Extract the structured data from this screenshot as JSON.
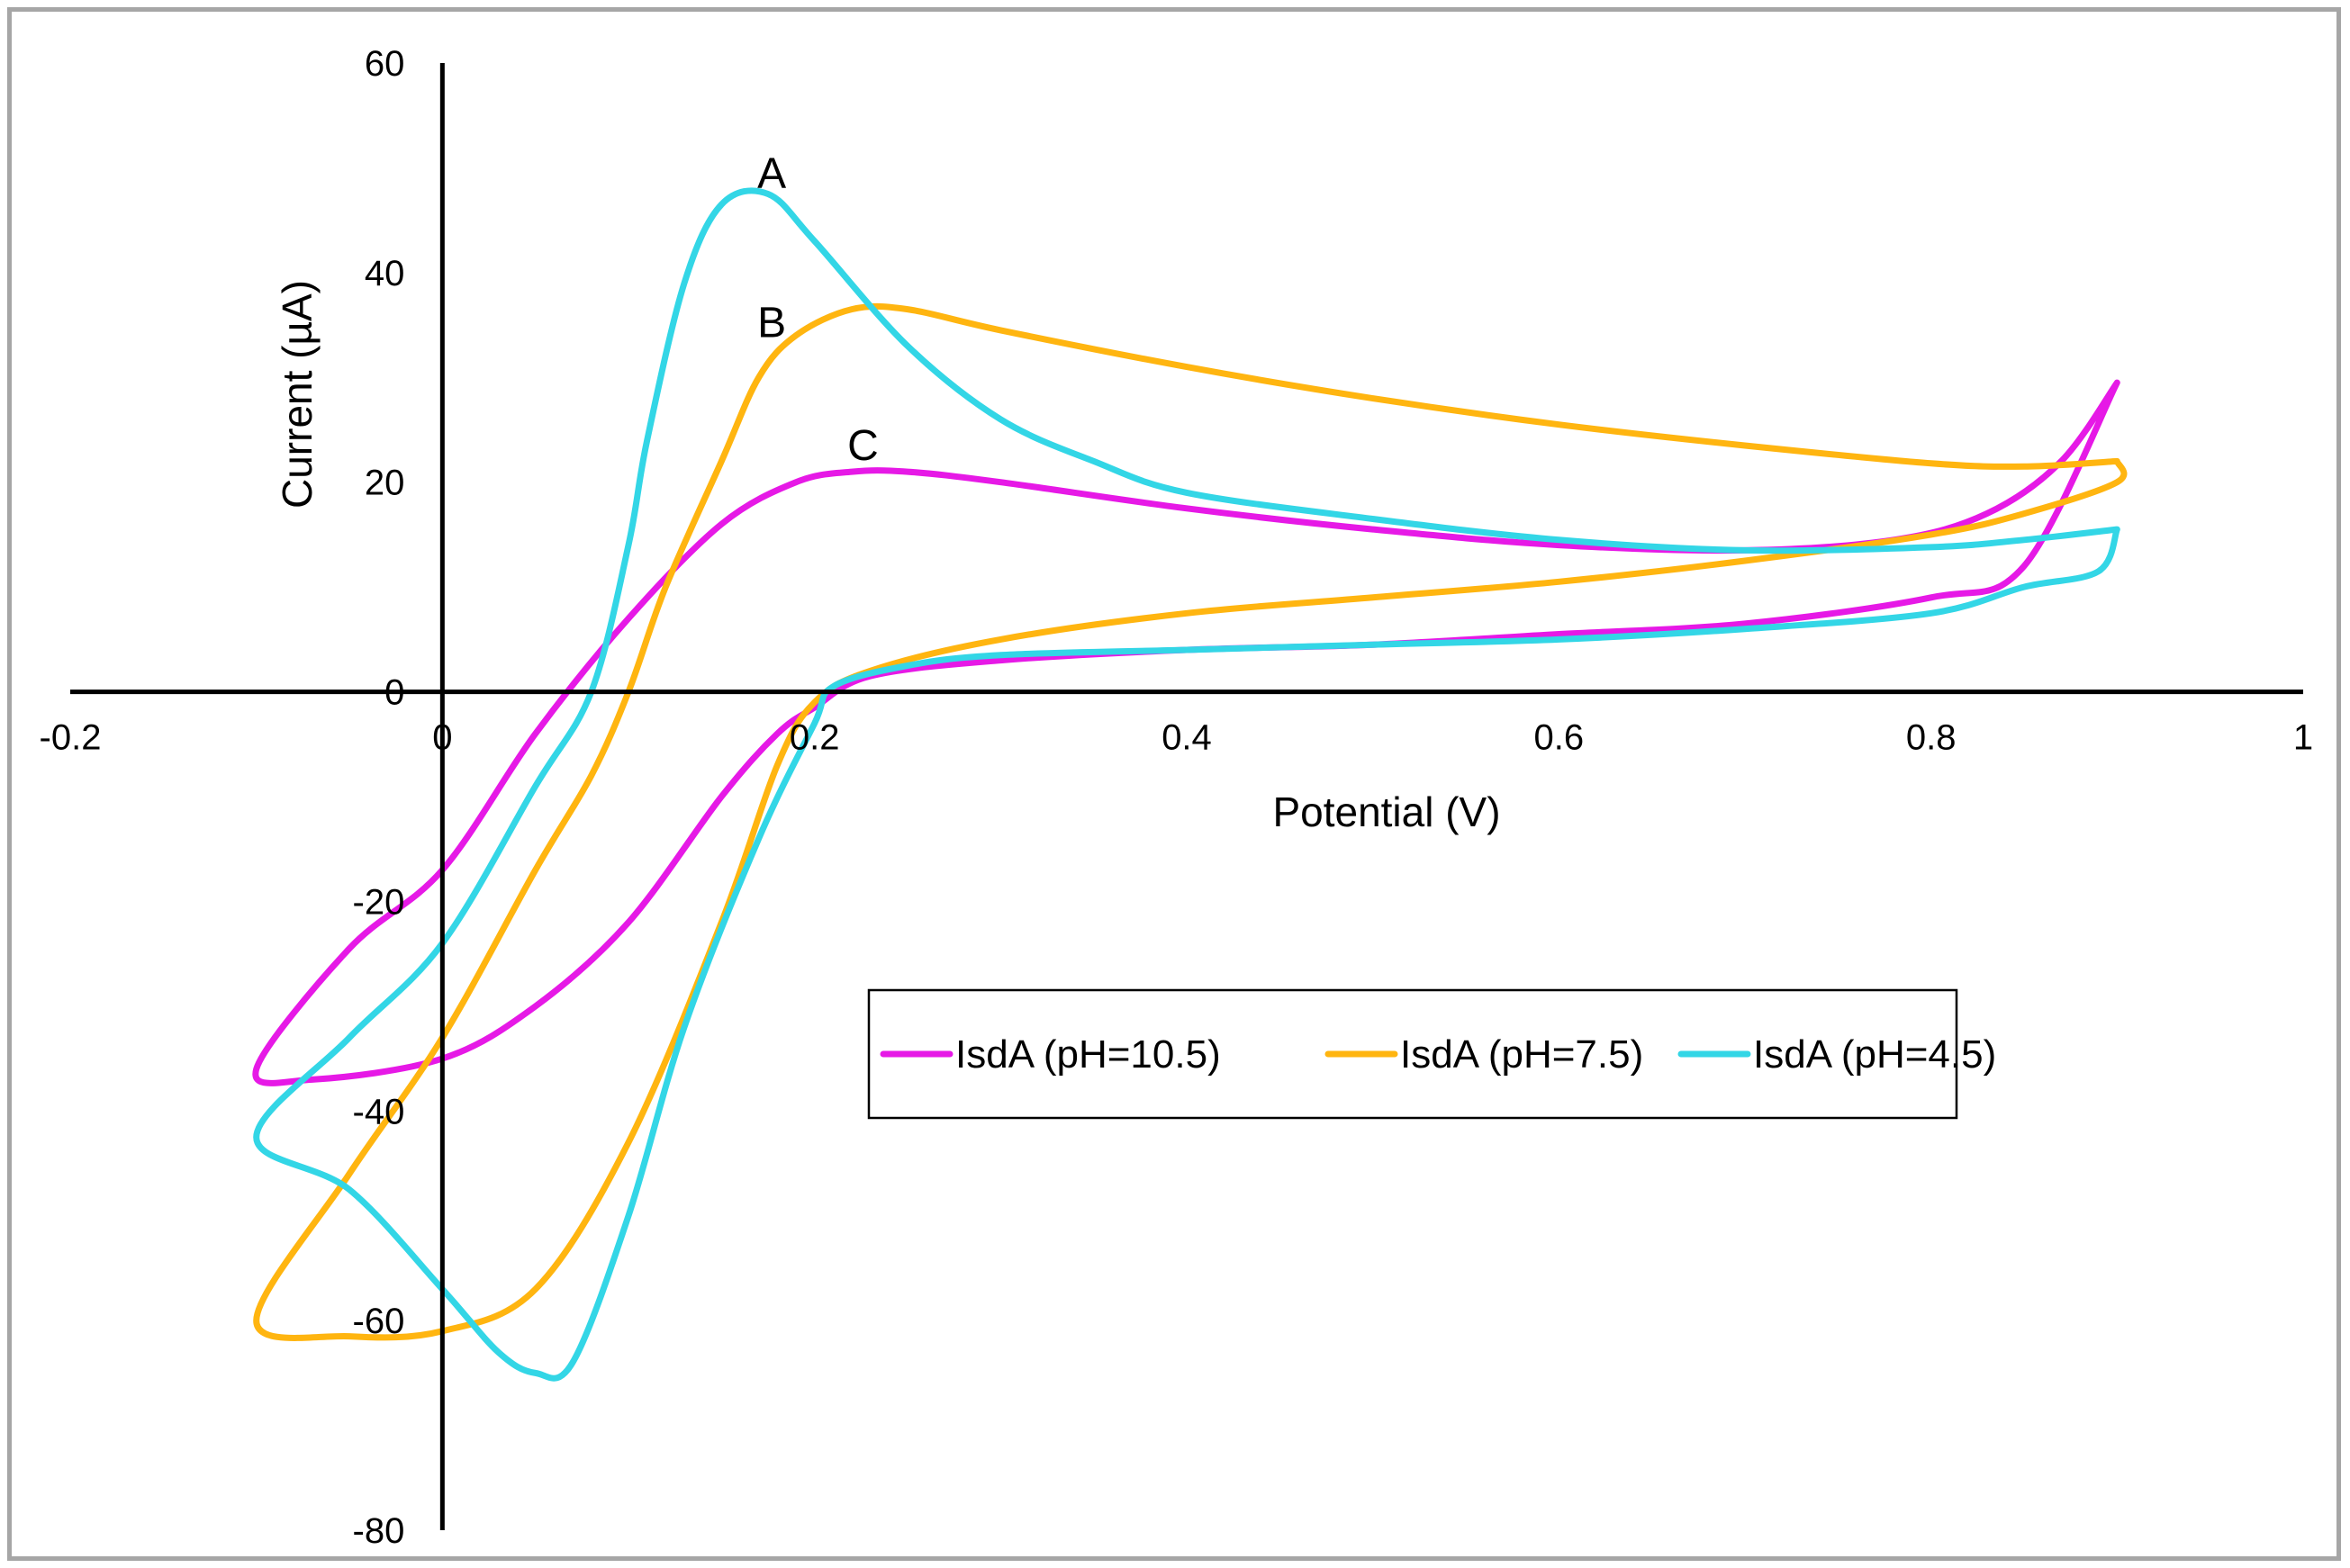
{
  "chart_data": {
    "type": "line",
    "title": "",
    "xlabel": "Potential (V)",
    "ylabel": "Current (µA)",
    "xlim": [
      -0.2,
      1
    ],
    "ylim": [
      -80,
      60
    ],
    "xticks": [
      -0.2,
      0,
      0.2,
      0.4,
      0.6,
      0.8,
      1
    ],
    "xtick_labels": [
      "-0.2",
      "0",
      "0.2",
      "0.4",
      "0.6",
      "0.8",
      "1"
    ],
    "yticks": [
      60,
      40,
      20,
      0,
      -20,
      -40,
      -60,
      -80
    ],
    "ytick_labels": [
      "60",
      "40",
      "20",
      "0",
      "-20",
      "-40",
      "-60",
      "-80"
    ],
    "grid": false,
    "legend_position": "center-right",
    "annotations": [
      {
        "text": "A",
        "x": 0.177,
        "y": 49.5
      },
      {
        "text": "B",
        "x": 0.177,
        "y": 35.2
      },
      {
        "text": "C",
        "x": 0.226,
        "y": 23.5
      }
    ],
    "series": [
      {
        "name": "IsdA (pH=10.5)",
        "color": "#e619e6",
        "points": [
          [
            0.9,
            29.5
          ],
          [
            0.87,
            22.0
          ],
          [
            0.83,
            17.0
          ],
          [
            0.78,
            14.5
          ],
          [
            0.7,
            13.5
          ],
          [
            0.6,
            14.0
          ],
          [
            0.5,
            15.5
          ],
          [
            0.4,
            17.5
          ],
          [
            0.3,
            20.0
          ],
          [
            0.25,
            21.0
          ],
          [
            0.22,
            21.0
          ],
          [
            0.19,
            20.0
          ],
          [
            0.15,
            16.0
          ],
          [
            0.1,
            7.0
          ],
          [
            0.05,
            -4.0
          ],
          [
            0.0,
            -17.0
          ],
          [
            -0.05,
            -24.5
          ],
          [
            -0.1,
            -36.0
          ],
          [
            -0.07,
            -37.0
          ],
          [
            0.0,
            -35.0
          ],
          [
            0.05,
            -30.0
          ],
          [
            0.1,
            -22.0
          ],
          [
            0.15,
            -10.0
          ],
          [
            0.18,
            -4.0
          ],
          [
            0.2,
            -1.5
          ],
          [
            0.23,
            1.5
          ],
          [
            0.3,
            3.0
          ],
          [
            0.4,
            4.0
          ],
          [
            0.5,
            4.5
          ],
          [
            0.6,
            5.5
          ],
          [
            0.7,
            6.5
          ],
          [
            0.8,
            9.0
          ],
          [
            0.85,
            12.0
          ],
          [
            0.9,
            29.5
          ]
        ]
      },
      {
        "name": "IsdA (pH=7.5)",
        "color": "#ffb510",
        "points": [
          [
            0.9,
            22.0
          ],
          [
            0.85,
            21.5
          ],
          [
            0.8,
            21.8
          ],
          [
            0.7,
            23.5
          ],
          [
            0.6,
            25.5
          ],
          [
            0.5,
            28.0
          ],
          [
            0.4,
            31.0
          ],
          [
            0.3,
            34.5
          ],
          [
            0.25,
            36.5
          ],
          [
            0.22,
            36.5
          ],
          [
            0.19,
            34.0
          ],
          [
            0.17,
            30.0
          ],
          [
            0.15,
            22.0
          ],
          [
            0.12,
            10.0
          ],
          [
            0.1,
            0.0
          ],
          [
            0.08,
            -8.0
          ],
          [
            0.05,
            -17.0
          ],
          [
            0.0,
            -33.0
          ],
          [
            -0.05,
            -46.0
          ],
          [
            -0.1,
            -60.0
          ],
          [
            -0.05,
            -61.5
          ],
          [
            0.0,
            -61.0
          ],
          [
            0.05,
            -57.0
          ],
          [
            0.1,
            -43.0
          ],
          [
            0.15,
            -22.0
          ],
          [
            0.18,
            -7.0
          ],
          [
            0.2,
            -1.0
          ],
          [
            0.23,
            2.0
          ],
          [
            0.3,
            5.0
          ],
          [
            0.4,
            7.5
          ],
          [
            0.5,
            9.0
          ],
          [
            0.6,
            10.5
          ],
          [
            0.7,
            12.5
          ],
          [
            0.8,
            15.0
          ],
          [
            0.85,
            17.0
          ],
          [
            0.9,
            20.0
          ],
          [
            0.9,
            22.0
          ]
        ]
      },
      {
        "name": "IsdA (pH=4.5)",
        "color": "#33d6e6",
        "points": [
          [
            0.9,
            15.5
          ],
          [
            0.85,
            14.5
          ],
          [
            0.8,
            13.8
          ],
          [
            0.7,
            13.5
          ],
          [
            0.6,
            14.5
          ],
          [
            0.5,
            16.5
          ],
          [
            0.4,
            19.0
          ],
          [
            0.35,
            22.0
          ],
          [
            0.3,
            26.0
          ],
          [
            0.25,
            33.0
          ],
          [
            0.2,
            43.0
          ],
          [
            0.175,
            47.5
          ],
          [
            0.15,
            46.5
          ],
          [
            0.13,
            39.0
          ],
          [
            0.11,
            24.0
          ],
          [
            0.1,
            14.0
          ],
          [
            0.08,
            0.0
          ],
          [
            0.05,
            -9.0
          ],
          [
            0.0,
            -24.0
          ],
          [
            -0.05,
            -33.0
          ],
          [
            -0.1,
            -42.5
          ],
          [
            -0.05,
            -47.5
          ],
          [
            0.0,
            -57.0
          ],
          [
            0.03,
            -63.0
          ],
          [
            0.05,
            -65.0
          ],
          [
            0.07,
            -64.0
          ],
          [
            0.1,
            -50.0
          ],
          [
            0.13,
            -32.0
          ],
          [
            0.17,
            -14.0
          ],
          [
            0.2,
            -3.0
          ],
          [
            0.21,
            0.5
          ],
          [
            0.25,
            2.5
          ],
          [
            0.3,
            3.5
          ],
          [
            0.4,
            4.0
          ],
          [
            0.5,
            4.5
          ],
          [
            0.6,
            5.0
          ],
          [
            0.7,
            6.0
          ],
          [
            0.8,
            7.5
          ],
          [
            0.85,
            10.0
          ],
          [
            0.89,
            11.5
          ],
          [
            0.9,
            15.5
          ]
        ]
      }
    ]
  }
}
